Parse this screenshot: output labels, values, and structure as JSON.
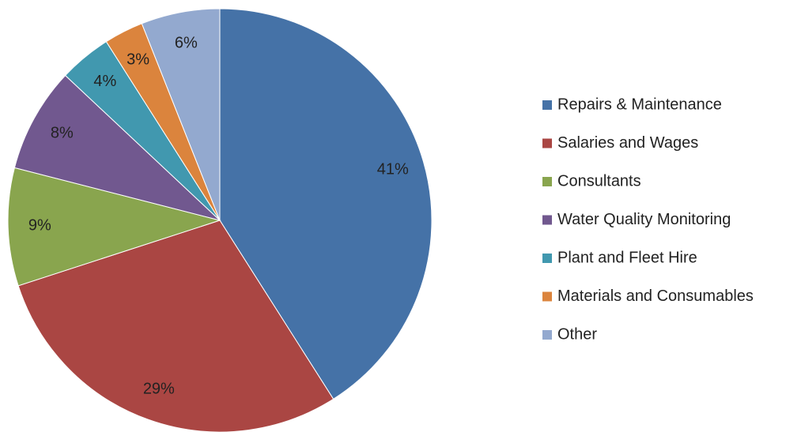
{
  "chart_data": {
    "type": "pie",
    "categories": [
      "Repairs & Maintenance",
      "Salaries and Wages",
      "Consultants",
      "Water Quality Monitoring",
      "Plant and Fleet Hire",
      "Materials and Consumables",
      "Other"
    ],
    "values": [
      41,
      29,
      9,
      8,
      4,
      3,
      6
    ],
    "value_labels": [
      "41%",
      "29%",
      "9%",
      "8%",
      "4%",
      "3%",
      "6%"
    ],
    "colors": [
      "#4572A7",
      "#AA4643",
      "#89A54E",
      "#71588F",
      "#4198AF",
      "#DB843D",
      "#93A9CF"
    ],
    "legend": "right"
  }
}
